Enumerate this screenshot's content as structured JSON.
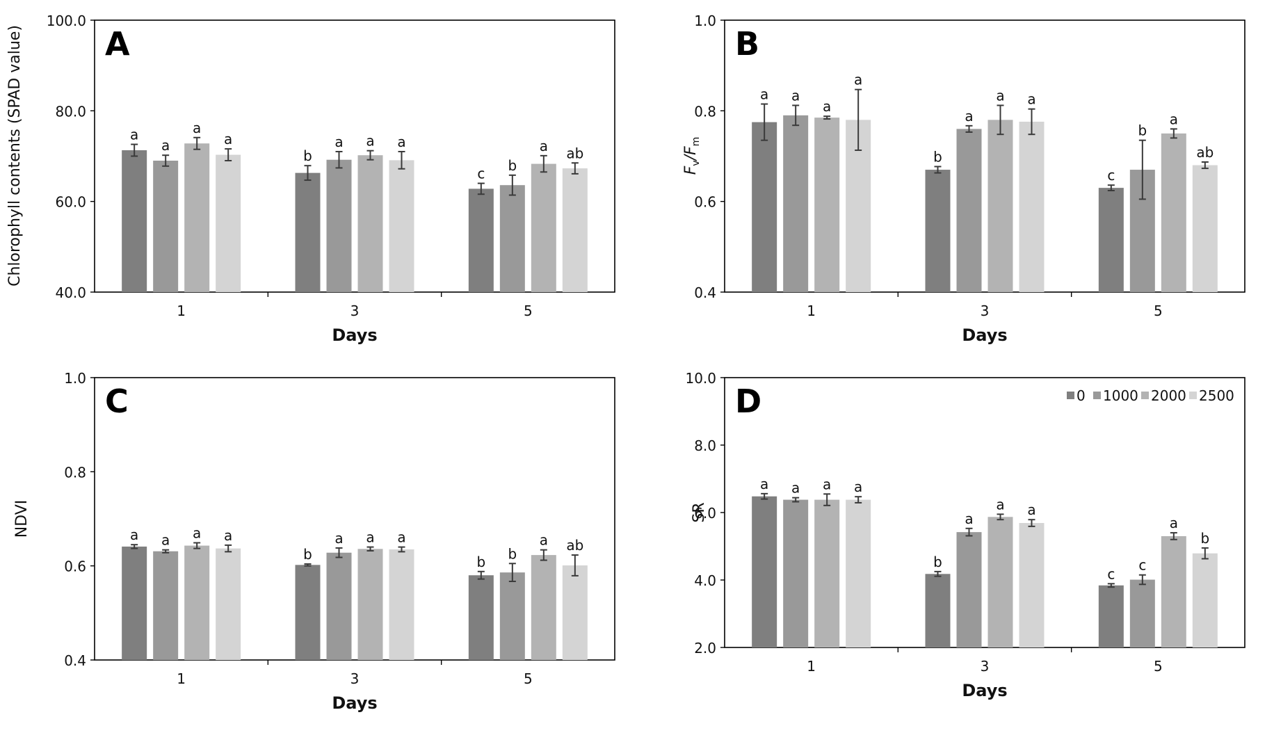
{
  "chart_data": [
    {
      "panel": "A",
      "type": "bar",
      "categories": [
        "1",
        "3",
        "5"
      ],
      "xlabel": "Days",
      "ylabel": "Chlorophyll contents (SPAD value)",
      "ylim": [
        40,
        100
      ],
      "yticks": [
        "40.0",
        "60.0",
        "80.0",
        "100.0"
      ],
      "series": [
        {
          "values": [
            71.3,
            66.3,
            62.8
          ],
          "errors": [
            1.3,
            1.6,
            1.2
          ],
          "letters": [
            "a",
            "b",
            "c"
          ]
        },
        {
          "values": [
            69.0,
            69.2,
            63.6
          ],
          "errors": [
            1.2,
            1.8,
            2.2
          ],
          "letters": [
            "a",
            "a",
            "b"
          ]
        },
        {
          "values": [
            72.8,
            70.2,
            68.3
          ],
          "errors": [
            1.3,
            1.0,
            1.8
          ],
          "letters": [
            "a",
            "a",
            "a"
          ]
        },
        {
          "values": [
            70.3,
            69.1,
            67.3
          ],
          "errors": [
            1.3,
            1.9,
            1.2
          ],
          "letters": [
            "a",
            "a",
            "ab"
          ]
        }
      ]
    },
    {
      "panel": "B",
      "type": "bar",
      "categories": [
        "1",
        "3",
        "5"
      ],
      "xlabel": "Days",
      "ylabel_main": "F",
      "ylabel_sub1": "v",
      "ylabel_mid": "/F",
      "ylabel_sub2": "m",
      "ylim": [
        0.4,
        1.0
      ],
      "yticks": [
        "0.4",
        "0.6",
        "0.8",
        "1.0"
      ],
      "series": [
        {
          "values": [
            0.775,
            0.67,
            0.63
          ],
          "errors": [
            0.04,
            0.007,
            0.006
          ],
          "letters": [
            "a",
            "b",
            "c"
          ]
        },
        {
          "values": [
            0.79,
            0.76,
            0.67
          ],
          "errors": [
            0.022,
            0.007,
            0.065
          ],
          "letters": [
            "a",
            "a",
            "b"
          ]
        },
        {
          "values": [
            0.785,
            0.78,
            0.75
          ],
          "errors": [
            0.003,
            0.032,
            0.01
          ],
          "letters": [
            "a",
            "a",
            "a"
          ]
        },
        {
          "values": [
            0.78,
            0.776,
            0.68
          ],
          "errors": [
            0.067,
            0.028,
            0.007
          ],
          "letters": [
            "a",
            "a",
            "ab"
          ]
        }
      ]
    },
    {
      "panel": "C",
      "type": "bar",
      "categories": [
        "1",
        "3",
        "5"
      ],
      "xlabel": "Days",
      "ylabel": "NDVI",
      "ylim": [
        0.4,
        1.0
      ],
      "yticks": [
        "0.4",
        "0.6",
        "0.8",
        "1.0"
      ],
      "series": [
        {
          "values": [
            0.641,
            0.602,
            0.58
          ],
          "errors": [
            0.004,
            0.002,
            0.008
          ],
          "letters": [
            "a",
            "b",
            "b"
          ]
        },
        {
          "values": [
            0.631,
            0.628,
            0.586
          ],
          "errors": [
            0.003,
            0.01,
            0.019
          ],
          "letters": [
            "a",
            "a",
            "b"
          ]
        },
        {
          "values": [
            0.643,
            0.636,
            0.623
          ],
          "errors": [
            0.006,
            0.004,
            0.011
          ],
          "letters": [
            "a",
            "a",
            "a"
          ]
        },
        {
          "values": [
            0.637,
            0.635,
            0.601
          ],
          "errors": [
            0.007,
            0.005,
            0.022
          ],
          "letters": [
            "a",
            "a",
            "ab"
          ]
        }
      ]
    },
    {
      "panel": "D",
      "type": "bar",
      "categories": [
        "1",
        "3",
        "5"
      ],
      "xlabel": "Days",
      "ylabel": "SR",
      "ylim": [
        2.0,
        10.0
      ],
      "yticks": [
        "2.0",
        "4.0",
        "6.0",
        "8.0",
        "10.0"
      ],
      "legend_position": "top-right",
      "series": [
        {
          "name": "0",
          "values": [
            6.48,
            4.18,
            3.84
          ],
          "errors": [
            0.08,
            0.07,
            0.05
          ],
          "letters": [
            "a",
            "b",
            "c"
          ]
        },
        {
          "name": "1000",
          "values": [
            6.38,
            5.42,
            4.01
          ],
          "errors": [
            0.06,
            0.11,
            0.14
          ],
          "letters": [
            "a",
            "a",
            "c"
          ]
        },
        {
          "name": "2000",
          "values": [
            6.38,
            5.87,
            5.3
          ],
          "errors": [
            0.17,
            0.08,
            0.1
          ],
          "letters": [
            "a",
            "a",
            "a"
          ]
        },
        {
          "name": "2500",
          "values": [
            6.38,
            5.69,
            4.79
          ],
          "errors": [
            0.09,
            0.1,
            0.16
          ],
          "letters": [
            "a",
            "a",
            "b"
          ]
        }
      ]
    }
  ],
  "colors": [
    "#7f7f7f",
    "#999999",
    "#b3b3b3",
    "#d4d4d4"
  ],
  "error_bar_color": "#3a3a3a"
}
